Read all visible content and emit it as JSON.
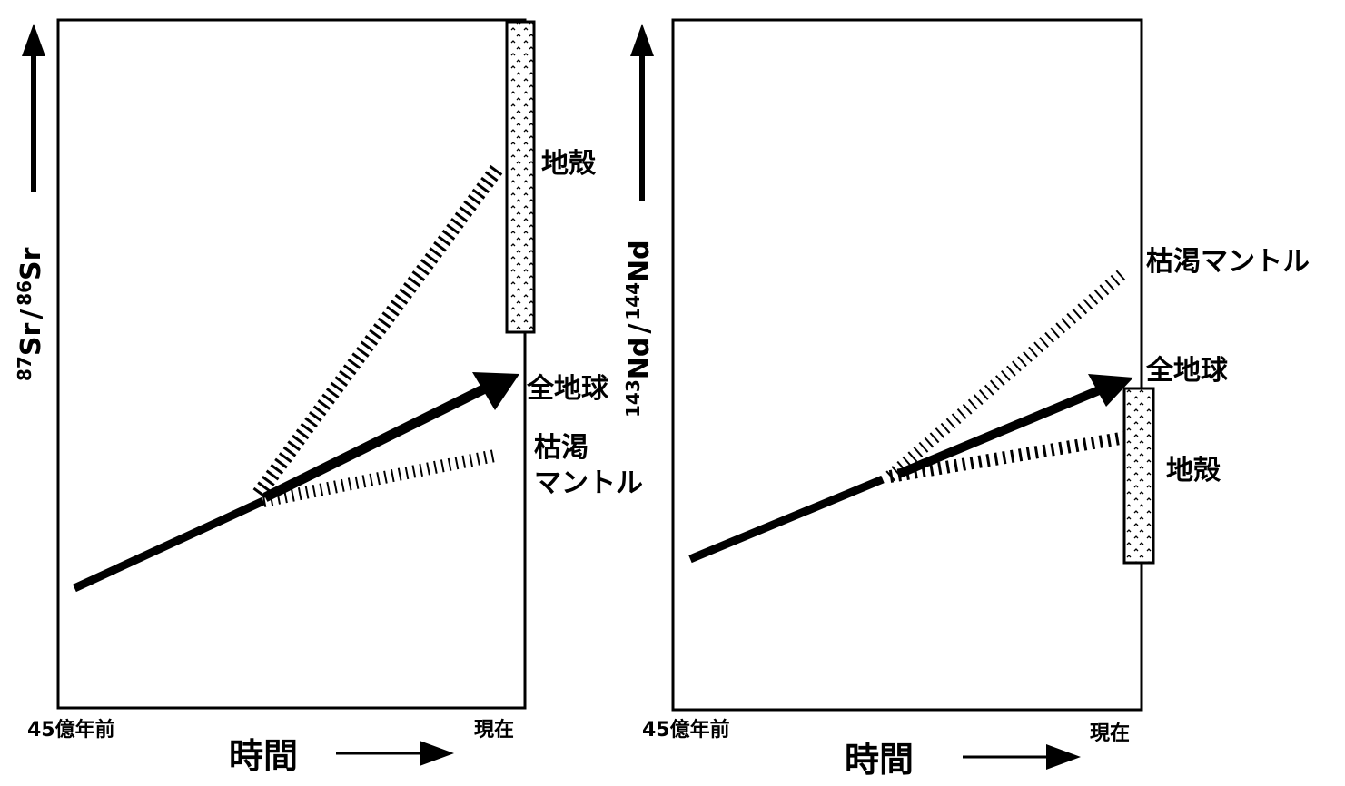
{
  "left_panel": {
    "y_axis": {
      "num1": "87",
      "den1": "Sr",
      "slash": "/",
      "num2": "86",
      "den2": "Sr"
    },
    "x_start": "45億年前",
    "x_end": "現在",
    "x_axis_label": "時間",
    "labels": {
      "crust": "地殻",
      "bulk_earth": "全地球",
      "depleted_line1": "枯渇",
      "depleted_line2": "マントル"
    }
  },
  "right_panel": {
    "y_axis": {
      "num1": "143",
      "den1": "Nd",
      "slash": "/",
      "num2": "144",
      "den2": "Nd"
    },
    "x_start": "45億年前",
    "x_end": "現在",
    "x_axis_label": "時間",
    "labels": {
      "depleted": "枯渇マントル",
      "bulk_earth": "全地球",
      "crust": "地殻"
    }
  }
}
